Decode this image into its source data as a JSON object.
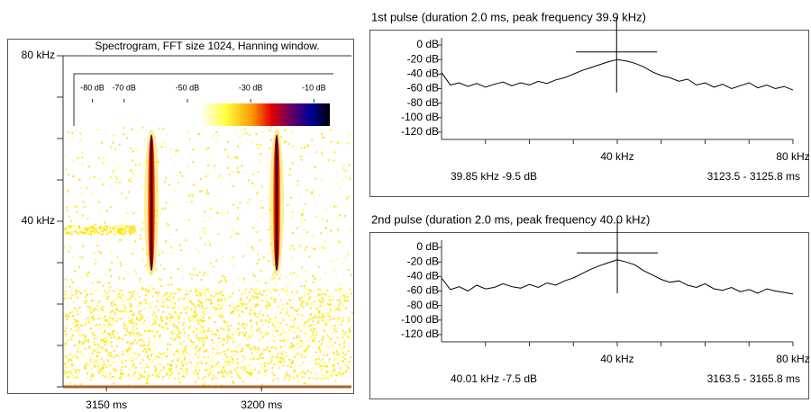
{
  "chart_data": [
    {
      "type": "spectrogram",
      "title": "Spectrogram, FFT size 1024, Hanning window.",
      "xlim": [
        3136,
        3229
      ],
      "xticks": [
        {
          "value": 3150,
          "label": "3150 ms"
        },
        {
          "value": 3200,
          "label": "3200 ms"
        }
      ],
      "ylim": [
        0,
        80
      ],
      "yticks": [
        {
          "value": 0,
          "label": null
        },
        {
          "value": 10,
          "label": null
        },
        {
          "value": 20,
          "label": null
        },
        {
          "value": 30,
          "label": null
        },
        {
          "value": 40,
          "label": "40 kHz"
        },
        {
          "value": 50,
          "label": null
        },
        {
          "value": 60,
          "label": null
        },
        {
          "value": 70,
          "label": null
        },
        {
          "value": 80,
          "label": "80 kHz"
        }
      ],
      "colorbar": {
        "lim": [
          -85,
          -5
        ],
        "ticks": [
          {
            "value": -80,
            "label": "-80 dB"
          },
          {
            "value": -70,
            "label": "-70 dB"
          },
          {
            "value": -50,
            "label": "-50 dB"
          },
          {
            "value": -30,
            "label": "-30 dB"
          },
          {
            "value": -10,
            "label": "-10 dB"
          }
        ]
      },
      "pulses": [
        {
          "time": 3164.5,
          "fmin": 28,
          "fmax": 61
        },
        {
          "time": 3204.9,
          "fmin": 28,
          "fmax": 61
        }
      ]
    },
    {
      "type": "line",
      "title": "1st pulse (duration 2.0 ms, peak frequency 39.9 kHz)",
      "x": [
        0,
        2,
        4,
        6,
        8,
        10,
        12,
        14,
        16,
        18,
        20,
        22,
        24,
        26,
        28,
        30,
        32,
        34,
        36,
        38,
        40,
        42,
        44,
        46,
        48,
        50,
        52,
        54,
        56,
        58,
        60,
        62,
        64,
        66,
        68,
        70,
        72,
        74,
        76,
        78,
        80
      ],
      "values": [
        -38,
        -55,
        -52,
        -57,
        -53,
        -58,
        -54,
        -51,
        -56,
        -52,
        -55,
        -50,
        -53,
        -48,
        -45,
        -40,
        -35,
        -31,
        -27,
        -23,
        -20,
        -22,
        -25,
        -30,
        -37,
        -42,
        -45,
        -50,
        -47,
        -55,
        -52,
        -58,
        -54,
        -60,
        -56,
        -52,
        -59,
        -55,
        -60,
        -57,
        -62
      ],
      "color": "#000000",
      "xlim": [
        0,
        80
      ],
      "xticks": [
        {
          "value": 10,
          "label": null
        },
        {
          "value": 20,
          "label": null
        },
        {
          "value": 30,
          "label": null
        },
        {
          "value": 40,
          "label": "40 kHz"
        },
        {
          "value": 50,
          "label": null
        },
        {
          "value": 60,
          "label": null
        },
        {
          "value": 70,
          "label": null
        },
        {
          "value": 80,
          "label": "80 kHz"
        }
      ],
      "ylim": [
        -130,
        10
      ],
      "yticks": [
        {
          "value": 0,
          "label": "0 dB"
        },
        {
          "value": -20,
          "label": "-20 dB"
        },
        {
          "value": -40,
          "label": "-40 dB"
        },
        {
          "value": -60,
          "label": "-60 dB"
        },
        {
          "value": -80,
          "label": "-80 dB"
        },
        {
          "value": -100,
          "label": "-100 dB"
        },
        {
          "value": -120,
          "label": "-120 dB"
        }
      ],
      "cursor": {
        "x": 39.85,
        "y": -9.5
      },
      "readout": "39.85 kHz -9.5 dB",
      "time_range": "3123.5 - 3125.8 ms"
    },
    {
      "type": "line",
      "title": "2nd pulse (duration 2.0 ms, peak frequency 40.0 kHz)",
      "x": [
        0,
        2,
        4,
        6,
        8,
        10,
        12,
        14,
        16,
        18,
        20,
        22,
        24,
        26,
        28,
        30,
        32,
        34,
        36,
        38,
        40,
        42,
        44,
        46,
        48,
        50,
        52,
        54,
        56,
        58,
        60,
        62,
        64,
        66,
        68,
        70,
        72,
        74,
        76,
        78,
        80
      ],
      "values": [
        -42,
        -58,
        -54,
        -60,
        -52,
        -57,
        -55,
        -50,
        -54,
        -56,
        -51,
        -55,
        -49,
        -52,
        -46,
        -42,
        -36,
        -30,
        -25,
        -21,
        -17,
        -20,
        -24,
        -32,
        -38,
        -44,
        -48,
        -46,
        -52,
        -55,
        -50,
        -57,
        -59,
        -55,
        -61,
        -58,
        -63,
        -57,
        -60,
        -62,
        -64
      ],
      "color": "#000000",
      "xlim": [
        0,
        80
      ],
      "xticks": [
        {
          "value": 10,
          "label": null
        },
        {
          "value": 20,
          "label": null
        },
        {
          "value": 30,
          "label": null
        },
        {
          "value": 40,
          "label": "40 kHz"
        },
        {
          "value": 50,
          "label": null
        },
        {
          "value": 60,
          "label": null
        },
        {
          "value": 70,
          "label": null
        },
        {
          "value": 80,
          "label": "80 kHz"
        }
      ],
      "ylim": [
        -130,
        10
      ],
      "yticks": [
        {
          "value": 0,
          "label": "0 dB"
        },
        {
          "value": -20,
          "label": "-20 dB"
        },
        {
          "value": -40,
          "label": "-40 dB"
        },
        {
          "value": -60,
          "label": "-60 dB"
        },
        {
          "value": -80,
          "label": "-80 dB"
        },
        {
          "value": -100,
          "label": "-100 dB"
        },
        {
          "value": -120,
          "label": "-120 dB"
        }
      ],
      "cursor": {
        "x": 40.01,
        "y": -7.5
      },
      "readout": "40.01 kHz -7.5 dB",
      "time_range": "3163.5 - 3165.8 ms"
    }
  ]
}
